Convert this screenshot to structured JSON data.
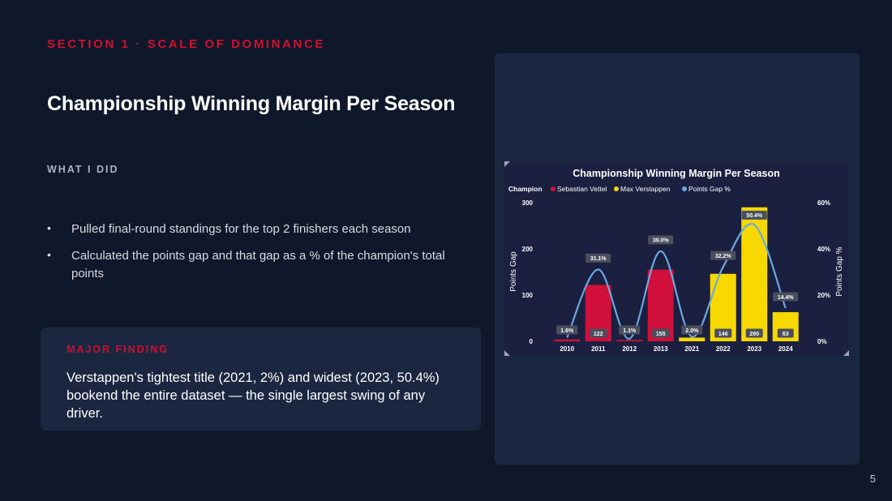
{
  "section_label": "SECTION 1 · SCALE OF DOMINANCE",
  "page_title": "Championship Winning Margin Per Season",
  "what_label": "WHAT I DID",
  "bullets": [
    "Pulled final-round standings for the top 2 finishers each season",
    "Calculated the points gap and that gap as a % of the champion's total points"
  ],
  "finding": {
    "label": "MAJOR FINDING",
    "text": "Verstappen's tightest title (2021, 2%) and widest (2023, 50.4%) bookend the entire dataset — the single largest swing of any driver."
  },
  "page_number": "5",
  "chart_data": {
    "type": "bar",
    "title": "Championship Winning Margin Per Season",
    "legend_title": "Champion",
    "legend_position": "top-left",
    "categories": [
      "2010",
      "2011",
      "2012",
      "2013",
      "2021",
      "2022",
      "2023",
      "2024"
    ],
    "series": [
      {
        "name": "Sebastian Vettel",
        "color": "#d0103a",
        "values": [
          4,
          122,
          3,
          155,
          null,
          null,
          null,
          null
        ]
      },
      {
        "name": "Max Verstappen",
        "color": "#f7d900",
        "values": [
          null,
          null,
          null,
          null,
          8,
          146,
          290,
          63
        ]
      }
    ],
    "bar_labels": [
      "",
      "122",
      "",
      "155",
      "",
      "146",
      "290",
      "63"
    ],
    "line_series": {
      "name": "Points Gap %",
      "color": "#6aa8e0",
      "values": [
        1.6,
        31.1,
        1.1,
        39.0,
        2.0,
        32.2,
        50.4,
        14.4
      ],
      "labels": [
        "1.6%",
        "31.1%",
        "1.1%",
        "39.0%",
        "2.0%",
        "32.2%",
        "50.4%",
        "14.4%"
      ]
    },
    "ylabel": "Points Gap",
    "y2label": "Points Gap %",
    "ylim": [
      0,
      300
    ],
    "yticks": [
      "0",
      "100",
      "200",
      "300"
    ],
    "y2lim": [
      0,
      60
    ],
    "y2ticks": [
      "0%",
      "20%",
      "40%",
      "60%"
    ],
    "grid": false
  }
}
